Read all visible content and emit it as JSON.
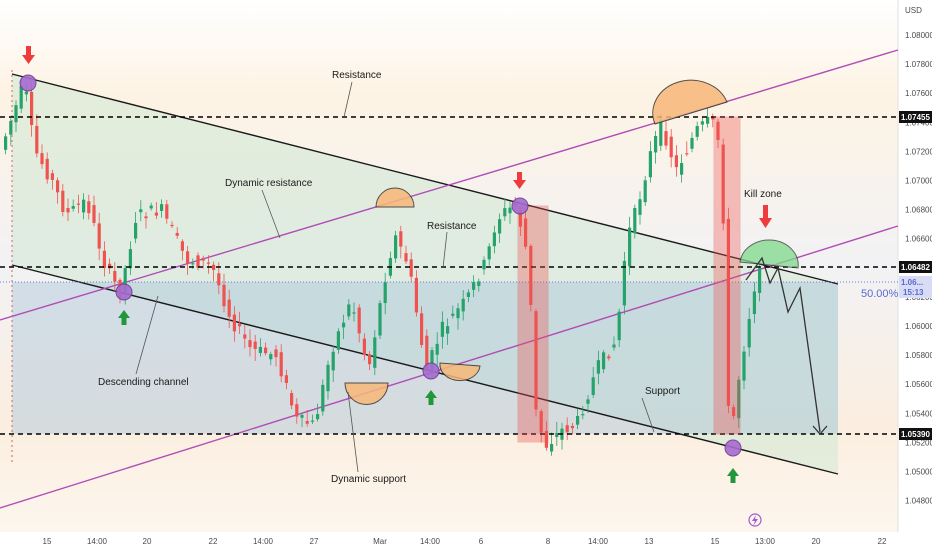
{
  "chart_data": {
    "type": "candlestick",
    "currency": "USD",
    "price_axis_ticks": [
      "1.08000",
      "1.07800",
      "1.07600",
      "1.07400",
      "1.07200",
      "1.07000",
      "1.06800",
      "1.06600",
      "1.06400",
      "1.06200",
      "1.06000",
      "1.05800",
      "1.05600",
      "1.05400",
      "1.05200",
      "1.05000",
      "1.04800"
    ],
    "price_tags": {
      "resistance": "1.07455",
      "support_mid": "1.06482",
      "support": "1.05390",
      "current": "1.06...",
      "timer": "15:13"
    },
    "x_axis_ticks": [
      "15",
      "14:00",
      "20",
      "22",
      "14:00",
      "27",
      "Mar",
      "14:00",
      "6",
      "8",
      "14:00",
      "13",
      "15",
      "13:00",
      "20",
      "22"
    ],
    "fib_label": "50.00%",
    "levels": {
      "resistance": 1.07455,
      "mid": 1.06482,
      "support": 1.0539
    },
    "annotations": [
      {
        "text": "Resistance"
      },
      {
        "text": "Dynamic resistance"
      },
      {
        "text": "Resistance"
      },
      {
        "text": "Kill zone"
      },
      {
        "text": "Descending channel"
      },
      {
        "text": "Support"
      },
      {
        "text": "Dynamic support"
      }
    ],
    "colors": {
      "up": "#26a36b",
      "down": "#ef5350",
      "channel_line": "#b04db6",
      "level": "#000000"
    }
  }
}
